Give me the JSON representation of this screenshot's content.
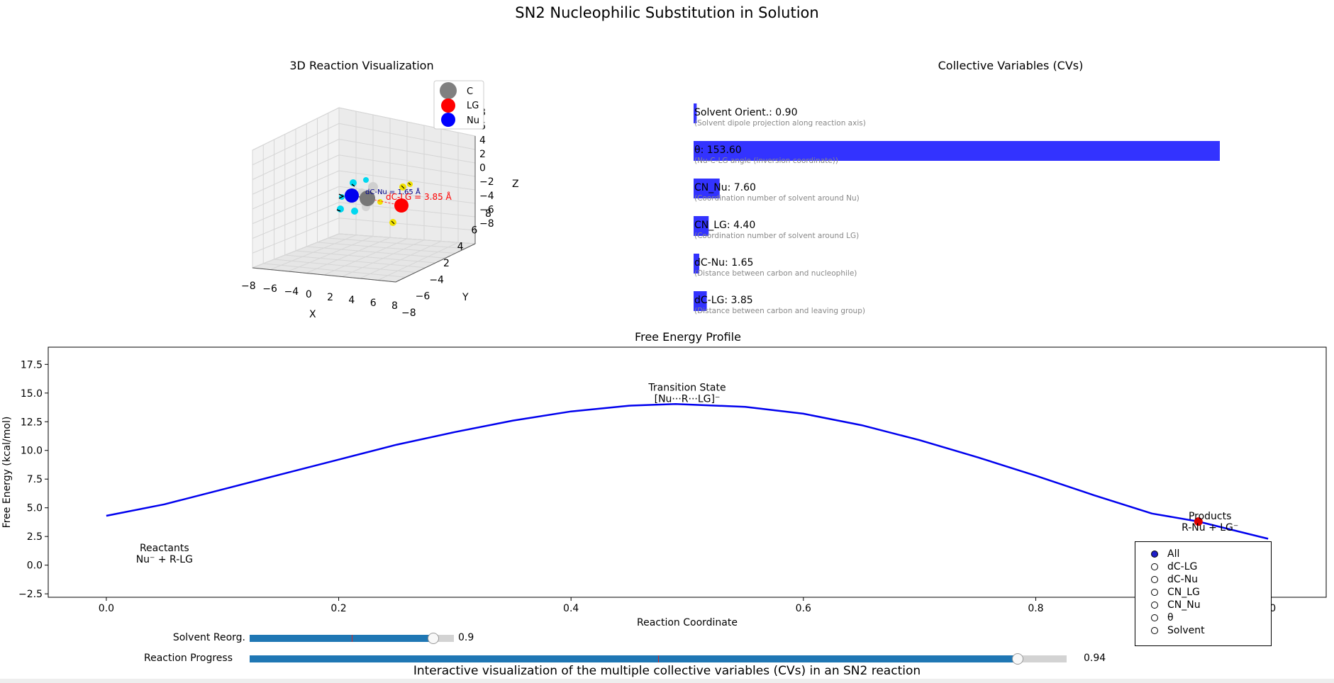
{
  "title": "SN2 Nucleophilic Substitution in Solution",
  "panel3d": {
    "title": "3D Reaction Visualization",
    "xlabel": "X",
    "ylabel": "Y",
    "zlabel": "Z",
    "ticks": [
      "−8",
      "−6",
      "−4",
      "−2",
      "0",
      "2",
      "4",
      "6",
      "8"
    ],
    "x_ticks": [
      "−8",
      "−6",
      "−4",
      "0",
      "2",
      "4",
      "6",
      "8"
    ],
    "y_ticks": [
      "−8",
      "−6",
      "−4",
      "2",
      "4",
      "6",
      "8"
    ],
    "z_ticks": [
      "8",
      "6",
      "4",
      "2",
      "0",
      "−2",
      "−4",
      "−6",
      "−8"
    ],
    "legend": [
      {
        "label": "C",
        "color": "#808080"
      },
      {
        "label": "LG",
        "color": "#ff0000"
      },
      {
        "label": "Nu",
        "color": "#0000ff"
      }
    ],
    "label_nu": "dC-Nu = 1.65 Å",
    "label_lg": "dC-LG = 3.85 Å"
  },
  "cv_panel": {
    "title": "Collective Variables (CVs)",
    "bar_color": "#3333ff"
  },
  "chart_data": [
    {
      "type": "bar",
      "title": "Collective Variables (CVs)",
      "orientation": "horizontal",
      "categories": [
        "Solvent Orient.",
        "θ",
        "CN_Nu",
        "CN_LG",
        "dC-Nu",
        "dC-LG"
      ],
      "values": [
        0.9,
        153.6,
        7.6,
        4.4,
        1.65,
        3.85
      ],
      "labels": [
        "Solvent Orient.: 0.90",
        "θ: 153.60",
        "CN_Nu: 7.60",
        "CN_LG: 4.40",
        "dC-Nu: 1.65",
        "dC-LG: 3.85"
      ],
      "descriptions": [
        "(Solvent dipole projection along reaction axis)",
        "(Nu-C-LG angle (inversion coordinate))",
        "(Coordination number of solvent around Nu)",
        "(Coordination number of solvent around LG)",
        "(Distance between carbon and nucleophile)",
        "(Distance between carbon and leaving group)"
      ]
    },
    {
      "type": "line",
      "title": "Free Energy Profile",
      "xlabel": "Reaction Coordinate",
      "ylabel": "Free Energy (kcal/mol)",
      "xlim": [
        -0.05,
        1.05
      ],
      "ylim": [
        -2.8,
        19.0
      ],
      "xticks": [
        0.0,
        0.2,
        0.4,
        0.6,
        0.8,
        1.0
      ],
      "xtick_labels": [
        "0.0",
        "0.2",
        "0.4",
        "0.6",
        "0.8",
        "1.0"
      ],
      "yticks": [
        -2.5,
        0.0,
        2.5,
        5.0,
        7.5,
        10.0,
        12.5,
        15.0,
        17.5
      ],
      "ytick_labels": [
        "−2.5",
        "0.0",
        "2.5",
        "5.0",
        "7.5",
        "10.0",
        "12.5",
        "15.0",
        "17.5"
      ],
      "series": [
        {
          "color": "#0000ee",
          "x": [
            0.0,
            0.05,
            0.1,
            0.15,
            0.2,
            0.25,
            0.3,
            0.35,
            0.4,
            0.45,
            0.49,
            0.55,
            0.6,
            0.65,
            0.7,
            0.75,
            0.8,
            0.85,
            0.9,
            0.94,
            1.0
          ],
          "y": [
            4.3,
            5.3,
            6.6,
            7.9,
            9.2,
            10.5,
            11.6,
            12.6,
            13.4,
            13.9,
            14.05,
            13.8,
            13.2,
            12.2,
            10.9,
            9.4,
            7.8,
            6.1,
            4.5,
            3.8,
            2.3
          ]
        }
      ],
      "current_point": {
        "x": 0.94,
        "y": 3.8,
        "color": "#dd0000"
      },
      "annotations": [
        {
          "text": [
            "Transition State",
            "[Nu···R···LG]⁻"
          ],
          "x": 0.5,
          "y": 15.2
        },
        {
          "text": [
            "Reactants",
            "Nu⁻ + R-LG"
          ],
          "x": 0.05,
          "y": 1.2
        },
        {
          "text": [
            "Products",
            "R-Nu + LG⁻"
          ],
          "x": 0.95,
          "y": 4.0
        }
      ]
    }
  ],
  "sliders": [
    {
      "label": "Solvent Reorg.",
      "value": 0.9,
      "value_text": "0.9",
      "init": 0.5
    },
    {
      "label": "Reaction Progress",
      "value": 0.94,
      "value_text": "0.94",
      "init": 0.5
    }
  ],
  "radio": {
    "options": [
      "All",
      "dC-LG",
      "dC-Nu",
      "CN_LG",
      "CN_Nu",
      "θ",
      "Solvent"
    ],
    "selected": "All"
  },
  "caption": "Interactive visualization of the multiple collective variables (CVs) in an SN2 reaction"
}
